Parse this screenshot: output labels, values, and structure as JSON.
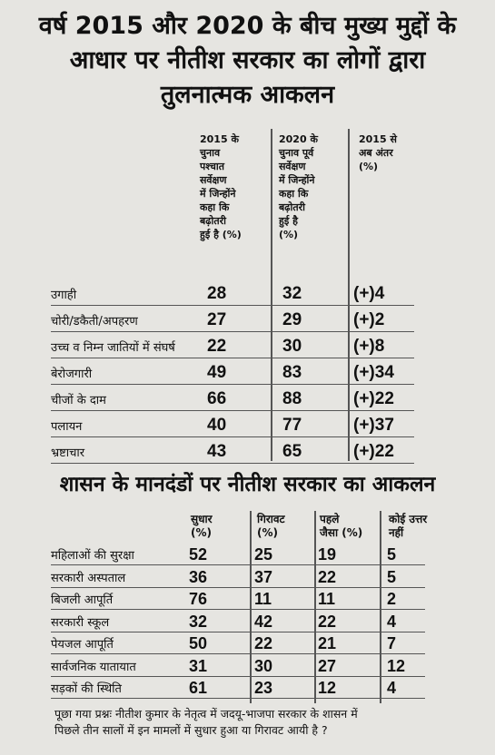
{
  "title": {
    "line1": "वर्ष 2015 और 2020 के बीच मुख्य मुद्दों के",
    "line2": "आधार पर नीतीश सरकार का लोगों द्वारा",
    "line3": "तुलनात्मक आकलन"
  },
  "table1": {
    "headers": [
      [
        "2015 के",
        "चुनाव",
        "पश्चात",
        "सर्वेक्षण",
        "में जिन्होंने",
        "कहा कि",
        "बढ़ोतरी",
        "हुई है (%)"
      ],
      [
        "2020 के",
        "चुनाव पूर्व",
        "सर्वेक्षण",
        "में जिन्होंने",
        "कहा कि",
        "बढ़ोतरी",
        "हुई है",
        "(%)"
      ],
      [
        "2015 से",
        "अब अंतर",
        "(%)"
      ]
    ],
    "rows": [
      {
        "label": "उगाही",
        "v2015": "28",
        "v2020": "32",
        "diff": "(+)4"
      },
      {
        "label": "चोरी/डकैती/अपहरण",
        "v2015": "27",
        "v2020": "29",
        "diff": "(+)2"
      },
      {
        "label": "उच्च व निम्न जातियों में संघर्ष",
        "v2015": "22",
        "v2020": "30",
        "diff": "(+)8"
      },
      {
        "label": "बेरोजगारी",
        "v2015": "49",
        "v2020": "83",
        "diff": "(+)34"
      },
      {
        "label": "चीजों के दाम",
        "v2015": "66",
        "v2020": "88",
        "diff": "(+)22"
      },
      {
        "label": "पलायन",
        "v2015": "40",
        "v2020": "77",
        "diff": "(+)37"
      },
      {
        "label": "भ्रष्टाचार",
        "v2015": "43",
        "v2020": "65",
        "diff": "(+)22"
      }
    ]
  },
  "subtitle": "शासन के मानदंडों पर नीतीश सरकार का आकलन",
  "table2": {
    "headers": [
      [
        "सुधार",
        "(%)"
      ],
      [
        "गिरावट",
        "(%)"
      ],
      [
        "पहले",
        "जैसा (%)"
      ],
      [
        "कोई उत्तर",
        "नहीं"
      ]
    ],
    "rows": [
      {
        "label": "महिलाओं की सुरक्षा",
        "a": "52",
        "b": "25",
        "c": "19",
        "d": "5"
      },
      {
        "label": "सरकारी अस्पताल",
        "a": "36",
        "b": "37",
        "c": "22",
        "d": "5"
      },
      {
        "label": "बिजली आपूर्ति",
        "a": "76",
        "b": "11",
        "c": "11",
        "d": "2"
      },
      {
        "label": "सरकारी स्कूल",
        "a": "32",
        "b": "42",
        "c": "22",
        "d": "4"
      },
      {
        "label": "पेयजल आपूर्ति",
        "a": "50",
        "b": "22",
        "c": "21",
        "d": "7"
      },
      {
        "label": "सार्वजनिक यातायात",
        "a": "31",
        "b": "30",
        "c": "27",
        "d": "12"
      },
      {
        "label": "सड़कों की स्थिति",
        "a": "61",
        "b": "23",
        "c": "12",
        "d": "4"
      }
    ]
  },
  "footnote": {
    "line1": "पूछा गया प्रश्नः नीतीश कुमार के नेतृत्व में जदयू-भाजपा सरकार के शासन में",
    "line2": "पिछले तीन सालों में इन मामलों में सुधार हुआ या गिरावट आयी है ?"
  }
}
